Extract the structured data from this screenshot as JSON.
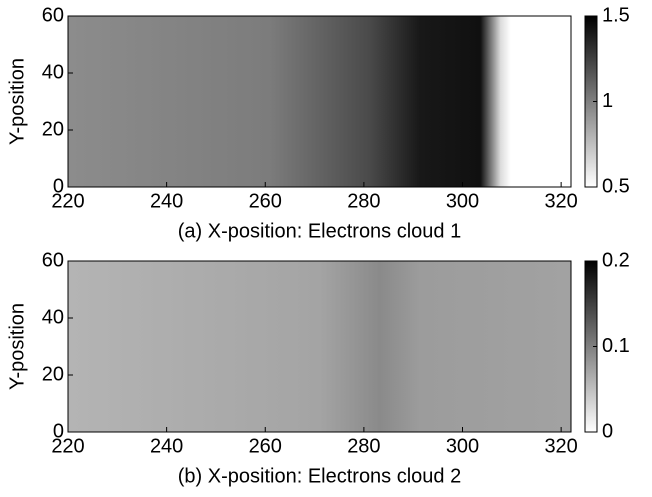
{
  "chart_data": [
    {
      "type": "heatmap",
      "colormap": "gray",
      "x_label": "(a) X-position: Electrons cloud 1",
      "y_label": "Y-position",
      "xlim": [
        220,
        322
      ],
      "xticks": [
        220,
        240,
        260,
        280,
        300,
        320
      ],
      "ylim": [
        0,
        60
      ],
      "yticks": [
        0,
        20,
        40,
        60
      ],
      "clim": [
        0.5,
        1.5
      ],
      "cticks": [
        0.5,
        1,
        1.5
      ]
    },
    {
      "type": "heatmap",
      "colormap": "gray",
      "x_label": "(b) X-position: Electrons cloud 2",
      "y_label": "Y-position",
      "xlim": [
        220,
        322
      ],
      "xticks": [
        220,
        240,
        260,
        280,
        300,
        320
      ],
      "ylim": [
        0,
        60
      ],
      "yticks": [
        0,
        20,
        40,
        60
      ],
      "clim": [
        0,
        0.2
      ],
      "cticks": [
        0,
        0.1,
        0.2
      ]
    }
  ]
}
